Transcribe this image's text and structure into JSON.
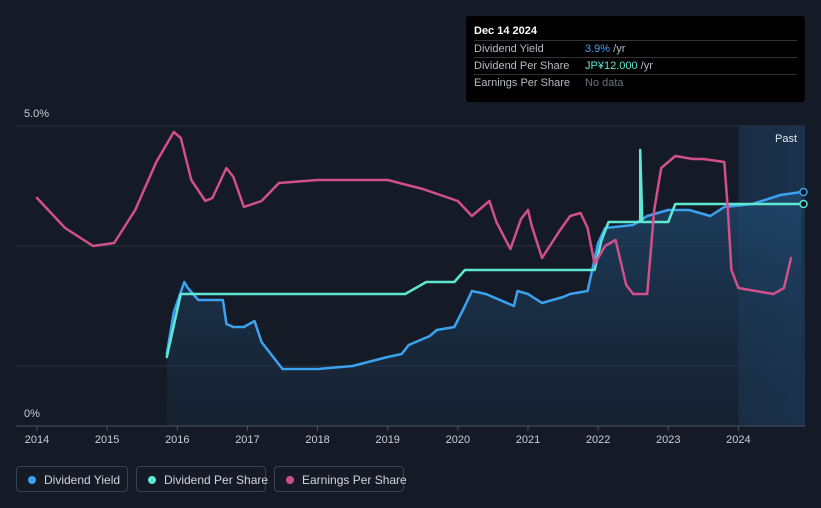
{
  "tooltip": {
    "date": "Dec 14 2024",
    "rows": [
      {
        "label": "Dividend Yield",
        "value": "3.9%",
        "unit": " /yr",
        "color": "#3ba2f0"
      },
      {
        "label": "Dividend Per Share",
        "value": "JP¥12.000",
        "unit": " /yr",
        "color": "#5ee8d3"
      },
      {
        "label": "Earnings Per Share",
        "value": "No data",
        "unit": "",
        "color": "#6b7280"
      }
    ]
  },
  "past_label": "Past",
  "legend": [
    {
      "label": "Dividend Yield",
      "color": "#3ba2f0"
    },
    {
      "label": "Dividend Per Share",
      "color": "#5ee8d3"
    },
    {
      "label": "Earnings Per Share",
      "color": "#d14f8a"
    }
  ],
  "chart_data": {
    "type": "line",
    "ylim": [
      0,
      5.0
    ],
    "ytick_labels": [
      "5.0%",
      "0%"
    ],
    "xlim": [
      2013.7,
      2024.95
    ],
    "xtick_labels": [
      "2014",
      "2015",
      "2016",
      "2017",
      "2018",
      "2019",
      "2020",
      "2021",
      "2022",
      "2023",
      "2024"
    ],
    "grid": true,
    "past_region_start": 2024.0,
    "series": [
      {
        "name": "Dividend Yield",
        "color": "#3ba2f0",
        "filled": true,
        "points": [
          [
            2015.85,
            1.2
          ],
          [
            2015.95,
            1.9
          ],
          [
            2016.1,
            2.4
          ],
          [
            2016.15,
            2.3
          ],
          [
            2016.3,
            2.1
          ],
          [
            2016.5,
            2.1
          ],
          [
            2016.65,
            2.1
          ],
          [
            2016.7,
            1.7
          ],
          [
            2016.8,
            1.65
          ],
          [
            2016.95,
            1.65
          ],
          [
            2017.1,
            1.75
          ],
          [
            2017.2,
            1.4
          ],
          [
            2017.5,
            0.95
          ],
          [
            2018.0,
            0.95
          ],
          [
            2018.5,
            1.0
          ],
          [
            2019.0,
            1.15
          ],
          [
            2019.2,
            1.2
          ],
          [
            2019.3,
            1.35
          ],
          [
            2019.6,
            1.5
          ],
          [
            2019.7,
            1.6
          ],
          [
            2019.95,
            1.65
          ],
          [
            2020.1,
            2.0
          ],
          [
            2020.2,
            2.25
          ],
          [
            2020.4,
            2.2
          ],
          [
            2020.8,
            2.0
          ],
          [
            2020.85,
            2.25
          ],
          [
            2021.0,
            2.2
          ],
          [
            2021.2,
            2.05
          ],
          [
            2021.5,
            2.15
          ],
          [
            2021.6,
            2.2
          ],
          [
            2021.85,
            2.25
          ],
          [
            2022.0,
            3.05
          ],
          [
            2022.1,
            3.3
          ],
          [
            2022.5,
            3.35
          ],
          [
            2022.7,
            3.5
          ],
          [
            2023.0,
            3.6
          ],
          [
            2023.3,
            3.6
          ],
          [
            2023.6,
            3.5
          ],
          [
            2023.8,
            3.65
          ],
          [
            2024.2,
            3.7
          ],
          [
            2024.6,
            3.85
          ],
          [
            2024.9,
            3.9
          ]
        ]
      },
      {
        "name": "Dividend Per Share",
        "color": "#5ee8d3",
        "filled": false,
        "points": [
          [
            2015.85,
            1.15
          ],
          [
            2016.05,
            2.2
          ],
          [
            2016.1,
            2.2
          ],
          [
            2019.25,
            2.2
          ],
          [
            2019.55,
            2.4
          ],
          [
            2019.95,
            2.4
          ],
          [
            2020.1,
            2.6
          ],
          [
            2021.95,
            2.6
          ],
          [
            2022.05,
            3.1
          ],
          [
            2022.15,
            3.4
          ],
          [
            2022.6,
            3.4
          ],
          [
            2022.6,
            4.6
          ],
          [
            2022.63,
            3.4
          ],
          [
            2023.0,
            3.4
          ],
          [
            2023.1,
            3.7
          ],
          [
            2024.9,
            3.7
          ]
        ]
      },
      {
        "name": "Earnings Per Share",
        "color": "#d14f8a",
        "filled": false,
        "points": [
          [
            2014.0,
            3.8
          ],
          [
            2014.4,
            3.3
          ],
          [
            2014.8,
            3.0
          ],
          [
            2015.1,
            3.05
          ],
          [
            2015.4,
            3.6
          ],
          [
            2015.7,
            4.4
          ],
          [
            2015.95,
            4.9
          ],
          [
            2016.05,
            4.8
          ],
          [
            2016.2,
            4.1
          ],
          [
            2016.4,
            3.75
          ],
          [
            2016.5,
            3.8
          ],
          [
            2016.7,
            4.3
          ],
          [
            2016.8,
            4.15
          ],
          [
            2016.95,
            3.65
          ],
          [
            2017.2,
            3.75
          ],
          [
            2017.45,
            4.05
          ],
          [
            2018.0,
            4.1
          ],
          [
            2018.5,
            4.1
          ],
          [
            2019.0,
            4.1
          ],
          [
            2019.5,
            3.95
          ],
          [
            2020.0,
            3.75
          ],
          [
            2020.2,
            3.5
          ],
          [
            2020.45,
            3.75
          ],
          [
            2020.55,
            3.4
          ],
          [
            2020.75,
            2.95
          ],
          [
            2020.9,
            3.45
          ],
          [
            2021.0,
            3.6
          ],
          [
            2021.05,
            3.35
          ],
          [
            2021.2,
            2.8
          ],
          [
            2021.45,
            3.25
          ],
          [
            2021.6,
            3.5
          ],
          [
            2021.75,
            3.55
          ],
          [
            2021.85,
            3.3
          ],
          [
            2021.95,
            2.7
          ],
          [
            2022.1,
            3.0
          ],
          [
            2022.25,
            3.1
          ],
          [
            2022.4,
            2.35
          ],
          [
            2022.5,
            2.2
          ],
          [
            2022.7,
            2.2
          ],
          [
            2022.8,
            3.6
          ],
          [
            2022.9,
            4.3
          ],
          [
            2023.1,
            4.5
          ],
          [
            2023.35,
            4.45
          ],
          [
            2023.5,
            4.45
          ],
          [
            2023.8,
            4.4
          ],
          [
            2023.85,
            3.6
          ],
          [
            2023.9,
            2.6
          ],
          [
            2024.0,
            2.3
          ],
          [
            2024.5,
            2.2
          ],
          [
            2024.65,
            2.3
          ],
          [
            2024.75,
            2.8
          ]
        ]
      }
    ]
  }
}
